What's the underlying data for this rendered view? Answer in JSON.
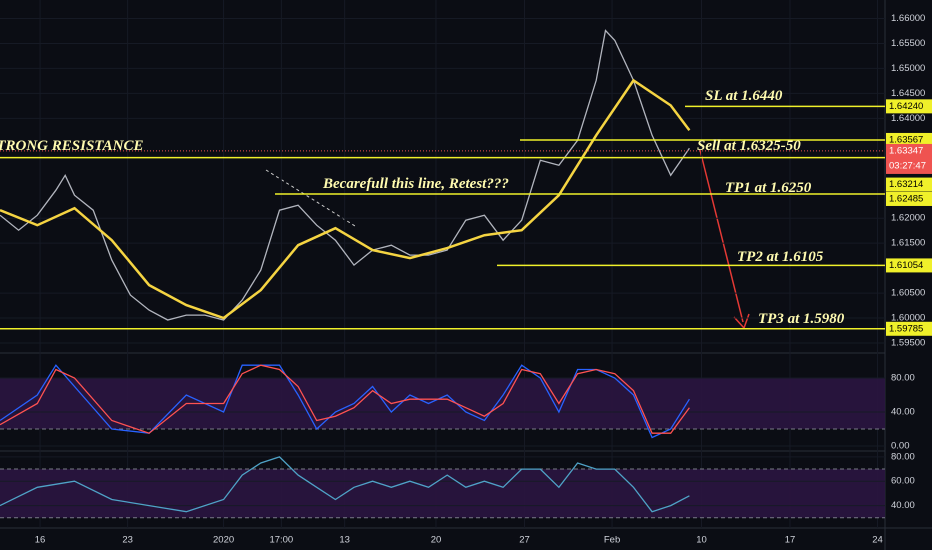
{
  "chart_data": [
    {
      "type": "line",
      "xlim": [
        0,
        95
      ],
      "ylim": [
        1.5932,
        1.6637
      ],
      "xticks": [
        {
          "value": 4.3,
          "label": "16"
        },
        {
          "value": 13.7,
          "label": "23"
        },
        {
          "value": 24,
          "label": "2020"
        },
        {
          "value": 30.2,
          "label": "17:00"
        },
        {
          "value": 37,
          "label": "13"
        },
        {
          "value": 46.8,
          "label": "20"
        },
        {
          "value": 56.3,
          "label": "27"
        },
        {
          "value": 65.7,
          "label": "Feb"
        },
        {
          "value": 75.3,
          "label": "10"
        },
        {
          "value": 84.8,
          "label": "17"
        },
        {
          "value": 94.2,
          "label": "24"
        }
      ],
      "yticks": [
        {
          "value": 1.66,
          "label": "1.66000"
        },
        {
          "value": 1.655,
          "label": "1.65500"
        },
        {
          "value": 1.65,
          "label": "1.65000"
        },
        {
          "value": 1.645,
          "label": "1.64500"
        },
        {
          "value": 1.64,
          "label": "1.64000"
        },
        {
          "value": 1.62,
          "label": "1.62000"
        },
        {
          "value": 1.615,
          "label": "1.61500"
        },
        {
          "value": 1.605,
          "label": "1.60500"
        },
        {
          "value": 1.6,
          "label": "1.60000"
        },
        {
          "value": 1.595,
          "label": "1.59500"
        }
      ],
      "series": [
        {
          "color": "#b2b5be",
          "x": [
            0,
            2,
            4,
            6,
            7,
            8,
            10,
            12,
            14,
            16,
            18,
            20,
            22,
            24,
            26,
            28,
            30,
            32,
            34,
            36,
            38,
            40,
            42,
            44,
            46,
            48,
            50,
            52,
            54,
            56,
            58,
            60,
            62,
            64,
            65,
            66,
            68,
            70,
            72,
            74
          ],
          "values": [
            1.6206,
            1.6176,
            1.6206,
            1.6256,
            1.6286,
            1.6246,
            1.6216,
            1.6116,
            1.6046,
            1.6016,
            1.5996,
            1.6006,
            1.6006,
            1.5996,
            1.6036,
            1.6096,
            1.6216,
            1.6226,
            1.6186,
            1.6156,
            1.6106,
            1.6136,
            1.6146,
            1.6126,
            1.6126,
            1.6136,
            1.6196,
            1.6206,
            1.6156,
            1.6196,
            1.6316,
            1.6306,
            1.6356,
            1.6476,
            1.6576,
            1.6556,
            1.6476,
            1.6366,
            1.6286,
            1.634
          ]
        },
        {
          "color": "#f5d442",
          "x": [
            0,
            4,
            8,
            12,
            16,
            20,
            24,
            28,
            32,
            36,
            40,
            44,
            48,
            52,
            56,
            60,
            64,
            68,
            72,
            74
          ],
          "values": [
            1.6216,
            1.6186,
            1.622,
            1.6156,
            1.6066,
            1.6026,
            1.6,
            1.6056,
            1.6146,
            1.618,
            1.6136,
            1.612,
            1.614,
            1.6166,
            1.6176,
            1.6246,
            1.6366,
            1.6476,
            1.6426,
            1.6376
          ]
        }
      ],
      "levels": [
        {
          "value": 1.6424,
          "label": "1.64240"
        },
        {
          "value": 1.63567,
          "label": "1.63567"
        },
        {
          "value": 1.63214,
          "label": "1.63214"
        },
        {
          "value": 1.62485,
          "label": "1.62485"
        },
        {
          "value": 1.61054,
          "label": "1.61054"
        },
        {
          "value": 1.59785,
          "label": "1.59785"
        }
      ],
      "current_price": {
        "value": 1.63347,
        "label": "1.63347"
      },
      "countdown": "03:27:47",
      "annotations": [
        "STRONG RESISTANCE",
        "Becarefull this line, Retest???",
        "SL at 1.6440",
        "Sell at 1.6325-50",
        "TP1 at 1.6250",
        "TP2 at 1.6105",
        "TP3 at 1.5980"
      ]
    },
    {
      "type": "line",
      "xlim": [
        0,
        95
      ],
      "ylim": [
        -10.6,
        107
      ],
      "yticks": [
        {
          "value": 80,
          "label": "80.00"
        },
        {
          "value": 40,
          "label": "40.00"
        },
        {
          "value": 0,
          "label": "0.00"
        }
      ],
      "band": [
        20,
        80
      ],
      "series": [
        {
          "color": "#2962ff",
          "x": [
            0,
            4,
            6,
            8,
            12,
            16,
            20,
            24,
            26,
            28,
            30,
            32,
            34,
            36,
            38,
            40,
            42,
            44,
            46,
            48,
            50,
            52,
            54,
            56,
            58,
            60,
            62,
            64,
            66,
            68,
            70,
            72,
            74
          ],
          "values": [
            30,
            60,
            95,
            70,
            20,
            15,
            60,
            40,
            95,
            95,
            95,
            60,
            20,
            40,
            50,
            70,
            40,
            60,
            50,
            60,
            40,
            30,
            60,
            95,
            80,
            40,
            90,
            90,
            80,
            60,
            10,
            20,
            55
          ]
        },
        {
          "color": "#ff5252",
          "x": [
            0,
            4,
            6,
            8,
            12,
            16,
            20,
            24,
            26,
            28,
            30,
            32,
            34,
            36,
            38,
            40,
            42,
            44,
            46,
            48,
            50,
            52,
            54,
            56,
            58,
            60,
            62,
            64,
            66,
            68,
            70,
            72,
            74
          ],
          "values": [
            25,
            50,
            90,
            80,
            30,
            15,
            50,
            50,
            85,
            95,
            90,
            70,
            30,
            35,
            45,
            65,
            50,
            55,
            55,
            55,
            45,
            35,
            50,
            90,
            85,
            50,
            85,
            90,
            85,
            65,
            15,
            15,
            45
          ]
        }
      ]
    },
    {
      "type": "line",
      "xlim": [
        0,
        95
      ],
      "ylim": [
        21.6,
        84
      ],
      "yticks": [
        {
          "value": 80,
          "label": "80.00"
        },
        {
          "value": 60,
          "label": "60.00"
        },
        {
          "value": 40,
          "label": "40.00"
        }
      ],
      "band": [
        30,
        70
      ],
      "series": [
        {
          "color": "#4fa3c7",
          "x": [
            0,
            4,
            8,
            12,
            16,
            20,
            24,
            26,
            28,
            30,
            32,
            34,
            36,
            38,
            40,
            42,
            44,
            46,
            48,
            50,
            52,
            54,
            56,
            58,
            60,
            62,
            64,
            66,
            68,
            70,
            72,
            74
          ],
          "values": [
            40,
            55,
            60,
            45,
            40,
            35,
            45,
            65,
            75,
            80,
            65,
            55,
            45,
            55,
            60,
            55,
            60,
            55,
            65,
            55,
            60,
            55,
            70,
            70,
            55,
            75,
            70,
            70,
            55,
            35,
            40,
            48
          ]
        }
      ]
    }
  ]
}
